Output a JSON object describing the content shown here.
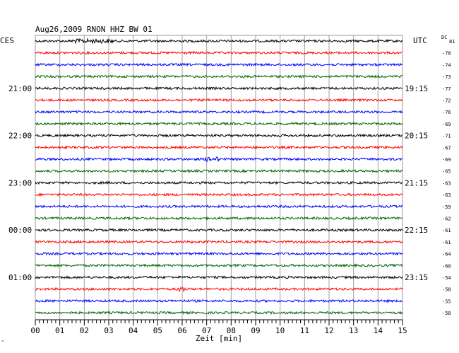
{
  "chart_data": {
    "type": "line",
    "title": "Aug26,2009   RNON HHZ BW 01",
    "left_tz_label": "CES",
    "right_tz_label": "UTC",
    "dc_label": "DC",
    "xlabel": "Zeit [min]",
    "x_ticks": [
      "00",
      "01",
      "02",
      "03",
      "04",
      "05",
      "06",
      "07",
      "08",
      "09",
      "10",
      "11",
      "12",
      "13",
      "14",
      "15"
    ],
    "xlim": [
      0,
      15
    ],
    "left_hour_labels": [
      "21:00",
      "22:00",
      "23:00",
      "00:00",
      "01:00"
    ],
    "right_hour_labels": [
      "19:15",
      "20:15",
      "21:15",
      "22:15",
      "23:15"
    ],
    "trace_colors": [
      "#000000",
      "#ff0000",
      "#0000ff",
      "#006400"
    ],
    "dc_offsets": [
      81,
      -78,
      -74,
      -73,
      -77,
      -72,
      -76,
      -69,
      -71,
      -67,
      -69,
      -65,
      -63,
      -63,
      -59,
      -62,
      -61,
      -61,
      -64,
      -60,
      -54,
      -58,
      -55,
      -58
    ],
    "traces_count": 24,
    "minutes_per_trace": 15,
    "grid": true
  }
}
